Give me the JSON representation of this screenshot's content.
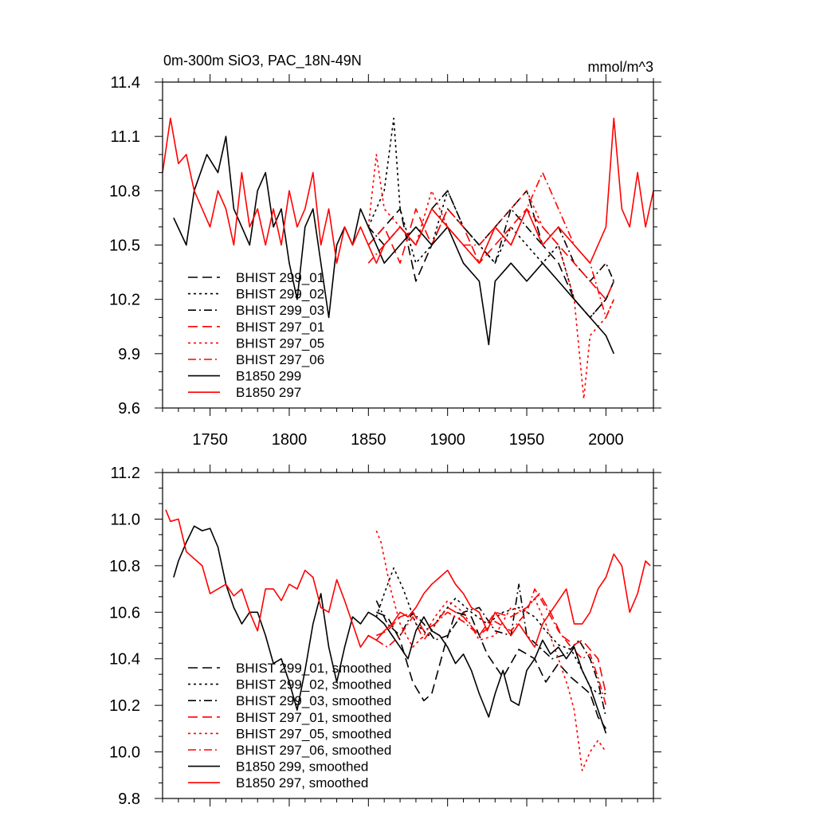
{
  "title_left": "0m-300m SiO3, PAC_18N-49N",
  "title_right": "mmol/m^3",
  "chart_data": [
    {
      "type": "line",
      "xlim": [
        1720,
        2030
      ],
      "ylim": [
        9.6,
        11.4
      ],
      "x_ticks": [
        1750,
        1800,
        1850,
        1900,
        1950,
        2000
      ],
      "y_ticks": [
        "9.6",
        "9.9",
        "10.2",
        "10.5",
        "10.8",
        "11.1",
        "11.4"
      ],
      "legend_position": "bottom-left",
      "series": [
        {
          "name": "BHIST 299_01",
          "color": "#000000",
          "dash": "long",
          "x": [
            1850,
            1860,
            1870,
            1880,
            1890,
            1900,
            1910,
            1920,
            1930,
            1940,
            1950,
            1960,
            1970,
            1980,
            1990,
            2000,
            2005
          ],
          "y": [
            10.5,
            10.6,
            10.7,
            10.3,
            10.5,
            10.7,
            10.6,
            10.5,
            10.6,
            10.7,
            10.8,
            10.5,
            10.4,
            10.2,
            10.1,
            10.2,
            10.3
          ]
        },
        {
          "name": "BHIST 299_02",
          "color": "#000000",
          "dash": "short",
          "x": [
            1850,
            1860,
            1866,
            1870,
            1880,
            1890,
            1900,
            1910,
            1920,
            1930,
            1940,
            1950,
            1960,
            1970,
            1980,
            1990,
            2000,
            2005
          ],
          "y": [
            10.6,
            10.8,
            11.2,
            10.7,
            10.4,
            10.5,
            10.8,
            10.6,
            10.5,
            10.4,
            10.6,
            10.5,
            10.4,
            10.5,
            10.2,
            10.1,
            10.2,
            10.3
          ]
        },
        {
          "name": "BHIST 299_03",
          "color": "#000000",
          "dash": "dashdot",
          "x": [
            1850,
            1860,
            1870,
            1880,
            1890,
            1900,
            1910,
            1920,
            1930,
            1940,
            1950,
            1960,
            1970,
            1980,
            1990,
            2000,
            2005
          ],
          "y": [
            10.6,
            10.5,
            10.6,
            10.5,
            10.7,
            10.8,
            10.6,
            10.5,
            10.4,
            10.7,
            10.6,
            10.5,
            10.6,
            10.4,
            10.3,
            10.4,
            10.3
          ]
        },
        {
          "name": "BHIST 297_01",
          "color": "#ff0000",
          "dash": "long",
          "x": [
            1850,
            1860,
            1870,
            1880,
            1890,
            1900,
            1910,
            1920,
            1930,
            1940,
            1950,
            1960,
            1970,
            1980,
            1990,
            2000,
            2005
          ],
          "y": [
            10.5,
            10.6,
            10.4,
            10.7,
            10.5,
            10.7,
            10.6,
            10.4,
            10.5,
            10.6,
            10.7,
            10.6,
            10.5,
            10.4,
            10.3,
            10.2,
            10.3
          ]
        },
        {
          "name": "BHIST 297_05",
          "color": "#ff0000",
          "dash": "short",
          "x": [
            1850,
            1855,
            1860,
            1870,
            1880,
            1890,
            1900,
            1910,
            1920,
            1930,
            1940,
            1950,
            1960,
            1970,
            1980,
            1986,
            1990,
            2000,
            2005
          ],
          "y": [
            10.6,
            11.0,
            10.7,
            10.6,
            10.5,
            10.8,
            10.6,
            10.5,
            10.4,
            10.6,
            10.7,
            10.8,
            10.6,
            10.5,
            10.2,
            9.65,
            10.0,
            10.1,
            10.2
          ]
        },
        {
          "name": "BHIST 297_06",
          "color": "#ff0000",
          "dash": "dashdot",
          "x": [
            1850,
            1860,
            1870,
            1880,
            1890,
            1900,
            1910,
            1920,
            1930,
            1940,
            1950,
            1960,
            1970,
            1980,
            1990,
            2000,
            2005
          ],
          "y": [
            10.4,
            10.5,
            10.6,
            10.5,
            10.7,
            10.6,
            10.5,
            10.5,
            10.6,
            10.5,
            10.7,
            10.9,
            10.7,
            10.5,
            10.4,
            10.1,
            10.2
          ]
        },
        {
          "name": "B1850 299",
          "color": "#000000",
          "dash": "solid",
          "x": [
            1727,
            1735,
            1740,
            1748,
            1755,
            1760,
            1765,
            1770,
            1775,
            1780,
            1785,
            1790,
            1795,
            1800,
            1805,
            1810,
            1815,
            1820,
            1825,
            1830,
            1835,
            1840,
            1845,
            1850,
            1855,
            1860,
            1870,
            1880,
            1890,
            1900,
            1910,
            1920,
            1926,
            1930,
            1940,
            1950,
            1960,
            1970,
            1980,
            1990,
            2000,
            2005
          ],
          "y": [
            10.65,
            10.5,
            10.8,
            11.0,
            10.9,
            11.1,
            10.7,
            10.6,
            10.5,
            10.8,
            10.9,
            10.6,
            10.7,
            10.4,
            10.2,
            10.6,
            10.7,
            10.4,
            10.1,
            10.5,
            10.6,
            10.5,
            10.7,
            10.6,
            10.5,
            10.4,
            10.5,
            10.6,
            10.5,
            10.6,
            10.4,
            10.3,
            9.95,
            10.3,
            10.4,
            10.3,
            10.4,
            10.3,
            10.2,
            10.1,
            10.0,
            9.9
          ]
        },
        {
          "name": "B1850 297",
          "color": "#ff0000",
          "dash": "solid",
          "x": [
            1720,
            1725,
            1730,
            1735,
            1740,
            1745,
            1750,
            1755,
            1760,
            1765,
            1770,
            1775,
            1780,
            1785,
            1790,
            1795,
            1800,
            1805,
            1810,
            1815,
            1820,
            1825,
            1830,
            1835,
            1840,
            1845,
            1850,
            1855,
            1860,
            1870,
            1880,
            1890,
            1900,
            1910,
            1920,
            1930,
            1940,
            1950,
            1960,
            1970,
            1980,
            1990,
            2000,
            2005,
            2010,
            2015,
            2020,
            2025,
            2030
          ],
          "y": [
            10.9,
            11.2,
            10.95,
            11.0,
            10.8,
            10.7,
            10.6,
            10.8,
            10.7,
            10.5,
            10.9,
            10.6,
            10.7,
            10.5,
            10.7,
            10.5,
            10.8,
            10.6,
            10.7,
            10.9,
            10.5,
            10.7,
            10.4,
            10.6,
            10.5,
            10.6,
            10.5,
            10.4,
            10.5,
            10.6,
            10.5,
            10.7,
            10.6,
            10.5,
            10.4,
            10.6,
            10.5,
            10.7,
            10.5,
            10.6,
            10.5,
            10.4,
            10.6,
            11.2,
            10.7,
            10.6,
            10.9,
            10.6,
            10.8
          ]
        }
      ]
    },
    {
      "type": "line",
      "xlim": [
        1720,
        2030
      ],
      "ylim": [
        9.8,
        11.2
      ],
      "x_ticks": [
        1750,
        1800,
        1850,
        1900,
        1950,
        2000
      ],
      "y_ticks": [
        "9.8",
        "10.0",
        "10.2",
        "10.4",
        "10.6",
        "10.8",
        "11.0",
        "11.2"
      ],
      "legend_position": "bottom-left",
      "series": [
        {
          "name": "BHIST 299_01, smoothed",
          "color": "#000000",
          "dash": "long",
          "x": [
            1855,
            1862,
            1870,
            1878,
            1885,
            1890,
            1898,
            1905,
            1915,
            1925,
            1935,
            1945,
            1955,
            1962,
            1970,
            1978,
            1985,
            1990,
            1995,
            2000
          ],
          "y": [
            10.6,
            10.58,
            10.48,
            10.3,
            10.22,
            10.25,
            10.45,
            10.6,
            10.58,
            10.42,
            10.32,
            10.44,
            10.4,
            10.3,
            10.38,
            10.32,
            10.28,
            10.25,
            10.15,
            10.1
          ]
        },
        {
          "name": "BHIST 299_02, smoothed",
          "color": "#000000",
          "dash": "short",
          "x": [
            1855,
            1860,
            1866,
            1872,
            1880,
            1888,
            1895,
            1905,
            1915,
            1925,
            1935,
            1945,
            1955,
            1962,
            1970,
            1978,
            1985,
            1990,
            1995,
            2000
          ],
          "y": [
            10.58,
            10.68,
            10.79,
            10.7,
            10.55,
            10.5,
            10.58,
            10.66,
            10.6,
            10.55,
            10.6,
            10.62,
            10.58,
            10.52,
            10.46,
            10.44,
            10.35,
            10.28,
            10.25,
            10.25
          ]
        },
        {
          "name": "BHIST 299_03, smoothed",
          "color": "#000000",
          "dash": "dashdot",
          "x": [
            1855,
            1862,
            1870,
            1878,
            1885,
            1892,
            1900,
            1910,
            1920,
            1930,
            1940,
            1945,
            1950,
            1958,
            1966,
            1975,
            1983,
            1990,
            1995,
            2000
          ],
          "y": [
            10.65,
            10.55,
            10.5,
            10.6,
            10.55,
            10.48,
            10.5,
            10.6,
            10.62,
            10.52,
            10.5,
            10.72,
            10.5,
            10.45,
            10.4,
            10.42,
            10.48,
            10.4,
            10.3,
            10.15
          ]
        },
        {
          "name": "BHIST 297_01, smoothed",
          "color": "#ff0000",
          "dash": "long",
          "x": [
            1855,
            1862,
            1870,
            1878,
            1885,
            1892,
            1900,
            1910,
            1920,
            1930,
            1940,
            1950,
            1958,
            1965,
            1972,
            1980,
            1985,
            1990,
            1995,
            2000
          ],
          "y": [
            10.5,
            10.52,
            10.58,
            10.6,
            10.52,
            10.55,
            10.62,
            10.58,
            10.5,
            10.6,
            10.58,
            10.62,
            10.68,
            10.6,
            10.5,
            10.46,
            10.48,
            10.44,
            10.4,
            10.25
          ]
        },
        {
          "name": "BHIST 297_05, smoothed",
          "color": "#ff0000",
          "dash": "short",
          "x": [
            1855,
            1858,
            1864,
            1870,
            1878,
            1885,
            1892,
            1900,
            1910,
            1920,
            1930,
            1940,
            1948,
            1955,
            1962,
            1970,
            1976,
            1980,
            1985,
            1990,
            1995,
            2000
          ],
          "y": [
            10.95,
            10.9,
            10.7,
            10.55,
            10.45,
            10.5,
            10.58,
            10.65,
            10.6,
            10.48,
            10.5,
            10.62,
            10.6,
            10.66,
            10.55,
            10.4,
            10.28,
            10.18,
            9.92,
            10.0,
            10.05,
            10.0
          ]
        },
        {
          "name": "BHIST 297_06, smoothed",
          "color": "#ff0000",
          "dash": "dashdot",
          "x": [
            1855,
            1862,
            1870,
            1878,
            1885,
            1892,
            1900,
            1910,
            1920,
            1930,
            1940,
            1950,
            1955,
            1962,
            1970,
            1978,
            1985,
            1990,
            1995,
            2000
          ],
          "y": [
            10.48,
            10.45,
            10.5,
            10.58,
            10.48,
            10.55,
            10.6,
            10.56,
            10.5,
            10.56,
            10.52,
            10.6,
            10.7,
            10.62,
            10.52,
            10.45,
            10.4,
            10.42,
            10.32,
            10.2
          ]
        },
        {
          "name": "B1850 299, smoothed",
          "color": "#000000",
          "dash": "solid",
          "x": [
            1727,
            1730,
            1735,
            1740,
            1745,
            1750,
            1755,
            1760,
            1765,
            1770,
            1775,
            1780,
            1785,
            1790,
            1795,
            1800,
            1805,
            1810,
            1815,
            1820,
            1825,
            1830,
            1835,
            1840,
            1845,
            1850,
            1855,
            1860,
            1865,
            1870,
            1875,
            1880,
            1885,
            1890,
            1895,
            1900,
            1905,
            1910,
            1915,
            1920,
            1926,
            1930,
            1935,
            1940,
            1945,
            1950,
            1955,
            1960,
            1965,
            1970,
            1975,
            1980,
            1985,
            1990,
            1995,
            2000
          ],
          "y": [
            10.75,
            10.82,
            10.9,
            10.97,
            10.95,
            10.96,
            10.88,
            10.72,
            10.62,
            10.55,
            10.6,
            10.6,
            10.5,
            10.38,
            10.4,
            10.3,
            10.18,
            10.35,
            10.55,
            10.68,
            10.45,
            10.3,
            10.45,
            10.58,
            10.55,
            10.6,
            10.58,
            10.55,
            10.5,
            10.45,
            10.4,
            10.52,
            10.58,
            10.52,
            10.5,
            10.45,
            10.38,
            10.42,
            10.35,
            10.25,
            10.15,
            10.25,
            10.35,
            10.22,
            10.2,
            10.35,
            10.4,
            10.48,
            10.42,
            10.45,
            10.4,
            10.45,
            10.35,
            10.28,
            10.18,
            10.08
          ]
        },
        {
          "name": "B1850 297, smoothed",
          "color": "#ff0000",
          "dash": "solid",
          "x": [
            1722,
            1725,
            1730,
            1735,
            1740,
            1745,
            1750,
            1755,
            1760,
            1765,
            1770,
            1775,
            1780,
            1785,
            1790,
            1795,
            1800,
            1805,
            1810,
            1815,
            1820,
            1825,
            1830,
            1835,
            1840,
            1845,
            1850,
            1855,
            1860,
            1865,
            1870,
            1875,
            1880,
            1885,
            1890,
            1895,
            1900,
            1905,
            1910,
            1915,
            1920,
            1925,
            1930,
            1935,
            1940,
            1945,
            1950,
            1955,
            1960,
            1965,
            1970,
            1975,
            1980,
            1985,
            1990,
            1995,
            2000,
            2005,
            2010,
            2015,
            2020,
            2025,
            2028
          ],
          "y": [
            11.04,
            10.99,
            11.0,
            10.86,
            10.83,
            10.8,
            10.68,
            10.7,
            10.72,
            10.67,
            10.7,
            10.6,
            10.52,
            10.7,
            10.7,
            10.65,
            10.72,
            10.7,
            10.78,
            10.75,
            10.62,
            10.6,
            10.74,
            10.65,
            10.55,
            10.45,
            10.5,
            10.48,
            10.52,
            10.55,
            10.6,
            10.58,
            10.62,
            10.68,
            10.72,
            10.75,
            10.78,
            10.72,
            10.68,
            10.62,
            10.6,
            10.52,
            10.6,
            10.55,
            10.5,
            10.55,
            10.5,
            10.45,
            10.55,
            10.6,
            10.65,
            10.7,
            10.55,
            10.55,
            10.6,
            10.7,
            10.75,
            10.85,
            10.8,
            10.6,
            10.68,
            10.82,
            10.8
          ]
        }
      ]
    }
  ]
}
